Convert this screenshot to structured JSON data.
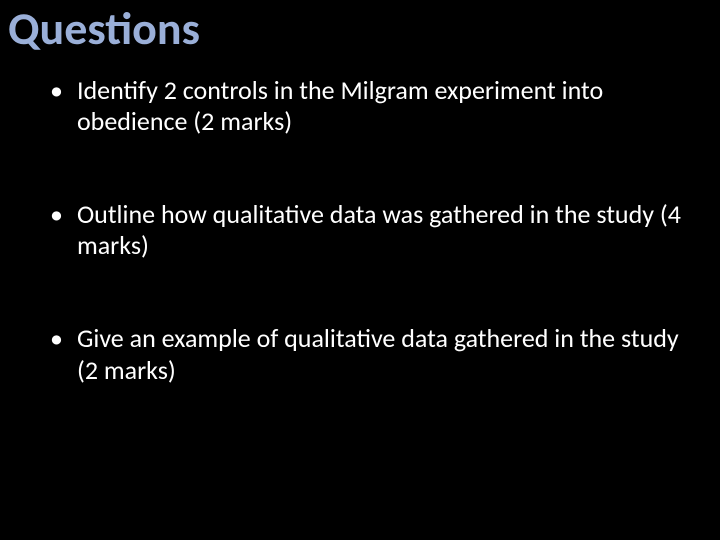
{
  "slide": {
    "title": "Questions",
    "title_color": "#9aafd8",
    "background_color": "#000000",
    "text_color": "#ffffff",
    "bullets": [
      {
        "text": "Identify 2 controls in the Milgram experiment into obedience (2 marks)"
      },
      {
        "text": "Outline how qualitative data was gathered in the study (4 marks)"
      },
      {
        "text": "Give an example of qualitative data gathered in the study (2 marks)"
      }
    ],
    "bullet_marker": "•",
    "title_fontsize": 46,
    "body_fontsize": 26
  }
}
